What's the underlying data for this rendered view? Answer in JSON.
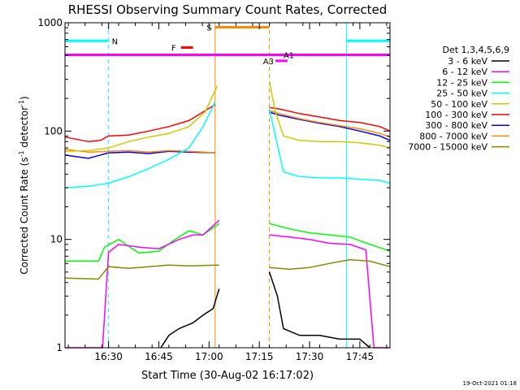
{
  "chart_data": {
    "type": "line",
    "title": "RHESSI Observing Summary Count Rates, Corrected",
    "xlabel": "Start Time (30-Aug-02 16:17:02)",
    "ylabel_main": "Corrected Count Rate (s",
    "ylabel_sup1": "-1",
    "ylabel_mid": " detector",
    "ylabel_sup2": "-1",
    "ylabel_end": ")",
    "y_scale": "log",
    "ylim": [
      1,
      1000
    ],
    "xlim_minutes": [
      16.2833,
      17.9
    ],
    "x_ticks": [
      {
        "label": "16:30",
        "t": 16.5
      },
      {
        "label": "16:45",
        "t": 16.75
      },
      {
        "label": "17:00",
        "t": 17.0
      },
      {
        "label": "17:15",
        "t": 17.25
      },
      {
        "label": "17:30",
        "t": 17.5
      },
      {
        "label": "17:45",
        "t": 17.75
      }
    ],
    "y_ticks": [
      {
        "label": "1",
        "v": 1
      },
      {
        "label": "10",
        "v": 10
      },
      {
        "label": "100",
        "v": 100
      },
      {
        "label": "1000",
        "v": 1000
      }
    ],
    "legend_header": "Det 1,3,4,5,6,9",
    "legend": [
      {
        "label": "3 - 6 keV",
        "color": "#000000"
      },
      {
        "label": "6 - 12 keV",
        "color": "#ff00ff"
      },
      {
        "label": "12 - 25 keV",
        "color": "#00ff00"
      },
      {
        "label": "25 - 50 keV",
        "color": "#00ffff"
      },
      {
        "label": "50 - 100 keV",
        "color": "#cccc00"
      },
      {
        "label": "100 - 300 keV",
        "color": "#ff0000"
      },
      {
        "label": "300 - 800 keV",
        "color": "#0000ff"
      },
      {
        "label": "800 - 7000 keV",
        "color": "#ff8800"
      },
      {
        "label": "7000 - 15000 keV",
        "color": "#888800"
      }
    ],
    "flags": [
      {
        "label": "N",
        "color": "#00ffff",
        "value": 680
      },
      {
        "label": "F",
        "color": "#ff0000",
        "value": 590
      },
      {
        "label": "S",
        "color": "#ff8800",
        "value": 910
      },
      {
        "label": "A1",
        "color": "#ff00ff",
        "value": 505
      },
      {
        "label": "A3",
        "color": "#ff00ff",
        "value": 445
      }
    ],
    "series": [
      {
        "color": "#ff0000",
        "points": [
          [
            16.2833,
            88
          ],
          [
            16.4,
            80
          ],
          [
            16.46,
            82
          ],
          [
            16.5,
            90
          ],
          [
            16.6,
            92
          ],
          [
            16.7,
            100
          ],
          [
            16.8,
            110
          ],
          [
            16.9,
            125
          ],
          [
            16.97,
            150
          ],
          [
            17.03,
            175
          ]
        ]
      },
      {
        "color": "#0000ff",
        "points": [
          [
            16.2833,
            60
          ],
          [
            16.4,
            56
          ],
          [
            16.5,
            63
          ],
          [
            16.6,
            64
          ],
          [
            16.7,
            62
          ],
          [
            16.8,
            65
          ],
          [
            16.9,
            64
          ],
          [
            17.03,
            63
          ]
        ]
      },
      {
        "color": "#ff8800",
        "points": [
          [
            16.2833,
            68
          ],
          [
            16.4,
            64
          ],
          [
            16.5,
            65
          ],
          [
            16.6,
            66
          ],
          [
            16.7,
            64
          ],
          [
            16.8,
            66
          ],
          [
            16.9,
            65
          ],
          [
            17.03,
            63
          ]
        ]
      },
      {
        "color": "#cccc00",
        "points": [
          [
            16.2833,
            65
          ],
          [
            16.4,
            66
          ],
          [
            16.5,
            70
          ],
          [
            16.6,
            80
          ],
          [
            16.7,
            88
          ],
          [
            16.8,
            95
          ],
          [
            16.9,
            110
          ],
          [
            16.98,
            150
          ],
          [
            17.04,
            260
          ]
        ]
      },
      {
        "color": "#00ffff",
        "points": [
          [
            16.2833,
            30
          ],
          [
            16.4,
            31
          ],
          [
            16.5,
            33
          ],
          [
            16.6,
            38
          ],
          [
            16.7,
            45
          ],
          [
            16.8,
            55
          ],
          [
            16.9,
            70
          ],
          [
            16.97,
            110
          ],
          [
            17.03,
            185
          ]
        ]
      },
      {
        "color": "#00ff00",
        "points": [
          [
            16.2833,
            6.3
          ],
          [
            16.45,
            6.3
          ],
          [
            16.48,
            8.5
          ],
          [
            16.55,
            10
          ],
          [
            16.65,
            7.5
          ],
          [
            16.75,
            7.8
          ],
          [
            16.83,
            10
          ],
          [
            16.9,
            12
          ],
          [
            16.97,
            11
          ],
          [
            17.05,
            14
          ]
        ]
      },
      {
        "color": "#ff00ff",
        "points": [
          [
            16.2833,
            1
          ],
          [
            16.47,
            1
          ],
          [
            16.5,
            7.6
          ],
          [
            16.55,
            9
          ],
          [
            16.65,
            8.5
          ],
          [
            16.75,
            8.2
          ],
          [
            16.85,
            10
          ],
          [
            16.92,
            11
          ],
          [
            16.97,
            11
          ],
          [
            17.05,
            15
          ]
        ]
      },
      {
        "color": "#888800",
        "points": [
          [
            16.2833,
            4.4
          ],
          [
            16.45,
            4.3
          ],
          [
            16.5,
            5.6
          ],
          [
            16.6,
            5.4
          ],
          [
            16.7,
            5.6
          ],
          [
            16.8,
            5.8
          ],
          [
            16.9,
            5.7
          ],
          [
            17.05,
            5.8
          ]
        ]
      },
      {
        "color": "#000000",
        "points": [
          [
            16.76,
            1
          ],
          [
            16.8,
            1.3
          ],
          [
            16.85,
            1.5
          ],
          [
            16.92,
            1.7
          ],
          [
            16.97,
            2.0
          ],
          [
            17.02,
            2.3
          ],
          [
            17.05,
            3.5
          ]
        ]
      },
      {
        "color": "#ff0000",
        "points": [
          [
            17.3,
            165
          ],
          [
            17.35,
            160
          ],
          [
            17.45,
            145
          ],
          [
            17.55,
            135
          ],
          [
            17.65,
            125
          ],
          [
            17.75,
            120
          ],
          [
            17.85,
            110
          ],
          [
            17.9,
            100
          ]
        ]
      },
      {
        "color": "#0000ff",
        "points": [
          [
            17.3,
            150
          ],
          [
            17.35,
            140
          ],
          [
            17.45,
            128
          ],
          [
            17.55,
            118
          ],
          [
            17.65,
            110
          ],
          [
            17.75,
            100
          ],
          [
            17.85,
            90
          ],
          [
            17.9,
            82
          ]
        ]
      },
      {
        "color": "#ff8800",
        "points": [
          [
            17.3,
            155
          ],
          [
            17.35,
            145
          ],
          [
            17.45,
            130
          ],
          [
            17.55,
            120
          ],
          [
            17.65,
            112
          ],
          [
            17.75,
            105
          ],
          [
            17.85,
            95
          ],
          [
            17.9,
            88
          ]
        ]
      },
      {
        "color": "#cccc00",
        "points": [
          [
            17.3,
            290
          ],
          [
            17.33,
            150
          ],
          [
            17.37,
            90
          ],
          [
            17.45,
            82
          ],
          [
            17.55,
            80
          ],
          [
            17.65,
            80
          ],
          [
            17.75,
            78
          ],
          [
            17.85,
            74
          ],
          [
            17.9,
            70
          ]
        ]
      },
      {
        "color": "#00ffff",
        "points": [
          [
            17.3,
            160
          ],
          [
            17.33,
            90
          ],
          [
            17.37,
            42
          ],
          [
            17.45,
            38
          ],
          [
            17.55,
            37
          ],
          [
            17.65,
            37
          ],
          [
            17.75,
            36
          ],
          [
            17.85,
            35
          ],
          [
            17.9,
            33
          ]
        ]
      },
      {
        "color": "#00ff00",
        "points": [
          [
            17.3,
            14
          ],
          [
            17.4,
            12.5
          ],
          [
            17.5,
            11.5
          ],
          [
            17.6,
            11
          ],
          [
            17.7,
            10.5
          ],
          [
            17.8,
            9
          ],
          [
            17.9,
            7.8
          ]
        ]
      },
      {
        "color": "#ff00ff",
        "points": [
          [
            17.3,
            11
          ],
          [
            17.4,
            10.5
          ],
          [
            17.5,
            10
          ],
          [
            17.6,
            9.2
          ],
          [
            17.7,
            9
          ],
          [
            17.78,
            8
          ],
          [
            17.82,
            1
          ],
          [
            17.9,
            1
          ]
        ]
      },
      {
        "color": "#888800",
        "points": [
          [
            17.3,
            5.5
          ],
          [
            17.4,
            5.3
          ],
          [
            17.5,
            5.5
          ],
          [
            17.6,
            6
          ],
          [
            17.7,
            6.5
          ],
          [
            17.8,
            6.3
          ],
          [
            17.9,
            5.6
          ]
        ]
      },
      {
        "color": "#000000",
        "points": [
          [
            17.3,
            5
          ],
          [
            17.34,
            3
          ],
          [
            17.37,
            1.5
          ],
          [
            17.45,
            1.3
          ],
          [
            17.55,
            1.3
          ],
          [
            17.65,
            1.2
          ],
          [
            17.75,
            1.2
          ],
          [
            17.8,
            1
          ]
        ]
      }
    ]
  },
  "intervals": {
    "night": [
      16.2833,
      16.5,
      17.6833,
      17.9
    ],
    "saa": [
      17.03,
      17.3
    ]
  },
  "timestamp": "19-Oct-2021 01:18"
}
